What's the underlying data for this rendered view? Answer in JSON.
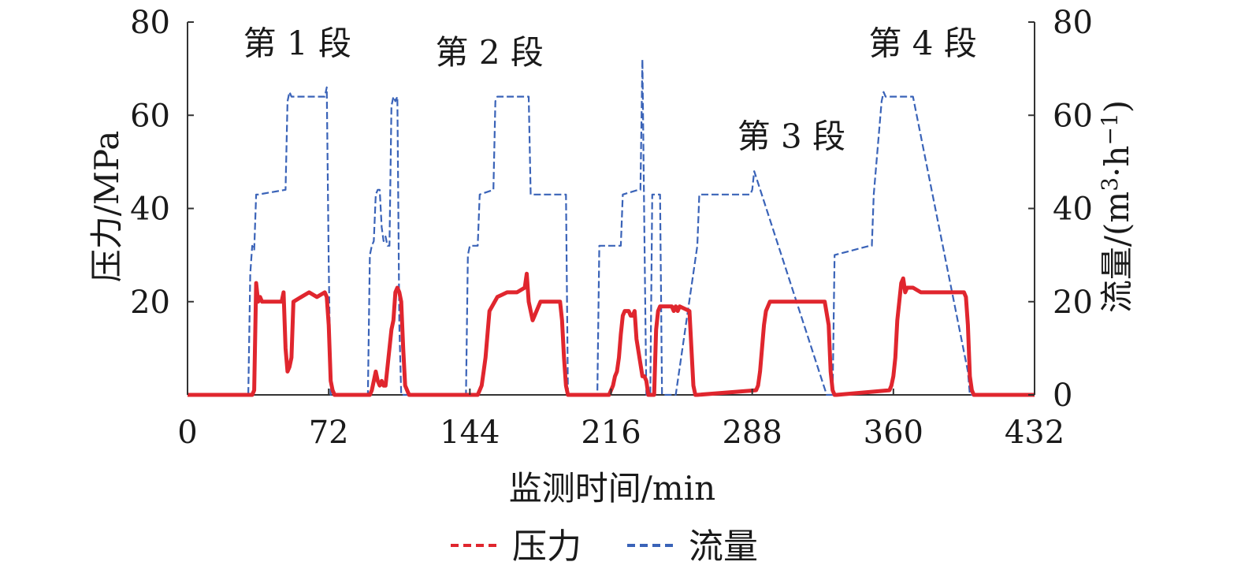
{
  "chart_data": {
    "type": "line",
    "xlabel": "监测时间/min",
    "ylabel_left": "压力/MPa",
    "ylabel_right_main": "流量/(m",
    "ylabel_right_sup1": "3",
    "ylabel_right_mid": "·h",
    "ylabel_right_sup2": "−1",
    "ylabel_right_end": ")",
    "xlim": [
      0,
      432
    ],
    "ylim_left": [
      0,
      80
    ],
    "ylim_right": [
      0,
      80
    ],
    "xticks": [
      0,
      72,
      144,
      216,
      288,
      360,
      432
    ],
    "yticks_left": [
      20,
      40,
      60,
      80
    ],
    "yticks_right": [
      0,
      20,
      40,
      60,
      80
    ],
    "grid": false,
    "legend_position": "bottom-center",
    "annotations": [
      {
        "text": "第 1 段",
        "x": 56,
        "y": 73
      },
      {
        "text": "第 2 段",
        "x": 154,
        "y": 71
      },
      {
        "text": "第 3 段",
        "x": 308,
        "y": 53
      },
      {
        "text": "第 4 段",
        "x": 375,
        "y": 73
      }
    ],
    "series": [
      {
        "name": "流量",
        "color": "#3a63b8",
        "style": "dashed",
        "x": [
          0,
          31,
          32,
          33,
          34,
          35,
          36,
          50,
          51,
          52,
          53,
          70,
          71,
          72,
          73,
          74,
          75,
          92,
          93,
          94,
          95,
          96,
          97,
          98,
          99,
          100,
          101,
          102,
          103,
          104,
          105,
          106,
          107,
          108,
          109,
          110,
          111,
          112,
          113,
          114,
          115,
          142,
          143,
          144,
          148,
          149,
          156,
          157,
          158,
          159,
          174,
          175,
          176,
          192,
          193,
          194,
          208,
          209,
          210,
          220,
          221,
          222,
          230,
          231,
          232,
          233,
          234,
          235,
          236,
          237,
          238,
          239,
          240,
          241,
          242,
          243,
          244,
          247,
          248,
          249,
          260,
          261,
          262,
          263,
          282,
          283,
          284,
          287,
          288,
          289,
          326,
          327,
          328,
          329,
          330,
          348,
          349,
          350,
          354,
          355,
          356,
          368,
          369,
          370,
          398,
          399,
          400,
          401,
          402,
          432
        ],
        "values": [
          0,
          0,
          26,
          32,
          31,
          43,
          43,
          44,
          63,
          65,
          64,
          64,
          66,
          28,
          0,
          0,
          0,
          0,
          30,
          32,
          33,
          43,
          44,
          44,
          36,
          33,
          34,
          32,
          32,
          62,
          64,
          63,
          64,
          15,
          0,
          0,
          0,
          0,
          0,
          0,
          0,
          0,
          30,
          32,
          32,
          43,
          44,
          63,
          64,
          64,
          64,
          43,
          43,
          43,
          43,
          0,
          0,
          0,
          32,
          32,
          32,
          43,
          44,
          44,
          72,
          35,
          0,
          0,
          0,
          43,
          43,
          43,
          43,
          43,
          0,
          0,
          0,
          0,
          0,
          0,
          32,
          43,
          43,
          43,
          43,
          43,
          43,
          43,
          44,
          48,
          0,
          0,
          0,
          0,
          30,
          32,
          32,
          43,
          63,
          65,
          64,
          64,
          64,
          64,
          5,
          0,
          0,
          0,
          0,
          0
        ]
      },
      {
        "name": "压力",
        "color": "#e0262e",
        "style": "dashed",
        "x": [
          0,
          33,
          34,
          35,
          36,
          37,
          38,
          48,
          49,
          50,
          51,
          52,
          53,
          54,
          58,
          62,
          66,
          70,
          71,
          72,
          73,
          74,
          75,
          92,
          93,
          94,
          95,
          96,
          97,
          98,
          99,
          100,
          101,
          102,
          103,
          104,
          105,
          106,
          107,
          108,
          109,
          110,
          111,
          112,
          113,
          148,
          149,
          150,
          151,
          152,
          153,
          154,
          158,
          163,
          168,
          172,
          173,
          174,
          175,
          176,
          177,
          180,
          186,
          190,
          191,
          192,
          193,
          194,
          215,
          216,
          217,
          218,
          219,
          220,
          221,
          222,
          223,
          224,
          225,
          226,
          227,
          228,
          229,
          232,
          233,
          234,
          235,
          236,
          237,
          238,
          239,
          240,
          241,
          247,
          248,
          249,
          250,
          251,
          256,
          257,
          258,
          259,
          260,
          290,
          291,
          292,
          293,
          294,
          295,
          296,
          297,
          300,
          310,
          320,
          325,
          327,
          328,
          329,
          330,
          331,
          358,
          359,
          360,
          361,
          362,
          363,
          364,
          365,
          366,
          367,
          370,
          374,
          380,
          388,
          396,
          397,
          398,
          399,
          400,
          401,
          432
        ],
        "values": [
          0,
          0,
          1,
          24,
          20,
          21,
          20,
          20,
          22,
          10,
          5,
          6,
          8,
          20,
          21,
          22,
          21,
          22,
          21,
          15,
          3,
          1,
          0,
          0,
          0,
          1,
          3,
          5,
          3,
          2,
          3,
          2,
          2,
          6,
          10,
          14,
          16,
          22,
          23,
          22,
          20,
          10,
          2,
          1,
          0,
          0,
          1,
          2,
          5,
          8,
          13,
          18,
          21,
          22,
          22,
          23,
          26,
          20,
          18,
          16,
          17,
          20,
          20,
          20,
          16,
          8,
          2,
          0,
          0,
          1,
          2,
          4,
          5,
          8,
          13,
          17,
          18,
          18,
          18,
          17,
          17,
          18,
          12,
          4,
          4,
          3,
          0,
          0,
          0,
          0,
          14,
          18,
          19,
          19,
          18,
          19,
          18,
          19,
          18,
          10,
          2,
          0,
          0,
          1,
          2,
          5,
          10,
          15,
          18,
          19,
          20,
          20,
          20,
          20,
          20,
          15,
          5,
          1,
          0,
          0,
          1,
          2,
          4,
          8,
          16,
          20,
          24,
          25,
          22,
          23,
          23,
          22,
          22,
          22,
          22,
          21,
          15,
          4,
          1,
          0,
          0
        ]
      }
    ]
  }
}
